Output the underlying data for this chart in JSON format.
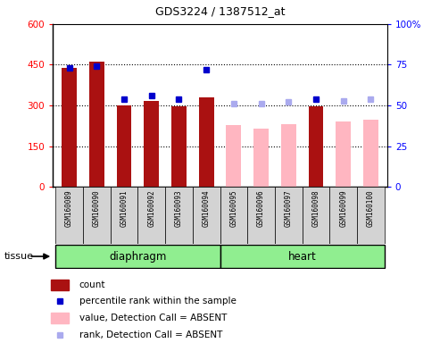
{
  "title": "GDS3224 / 1387512_at",
  "samples": [
    "GSM160089",
    "GSM160090",
    "GSM160091",
    "GSM160092",
    "GSM160093",
    "GSM160094",
    "GSM160095",
    "GSM160096",
    "GSM160097",
    "GSM160098",
    "GSM160099",
    "GSM160100"
  ],
  "count_present": [
    440,
    462,
    300,
    318,
    298,
    330,
    null,
    null,
    null,
    298,
    null,
    null
  ],
  "count_absent": [
    null,
    null,
    null,
    null,
    null,
    null,
    228,
    215,
    230,
    null,
    240,
    248
  ],
  "rank_present": [
    73,
    74,
    54,
    56,
    54,
    72,
    null,
    null,
    null,
    54,
    null,
    null
  ],
  "rank_absent": [
    null,
    null,
    null,
    null,
    null,
    null,
    51,
    51,
    52,
    null,
    53,
    54
  ],
  "n_diaphragm": 6,
  "n_heart": 6,
  "ylim_left": [
    0,
    600
  ],
  "ylim_right": [
    0,
    100
  ],
  "yticks_left": [
    0,
    150,
    300,
    450,
    600
  ],
  "yticks_right": [
    0,
    25,
    50,
    75,
    100
  ],
  "bar_color_present": "#AA1111",
  "bar_color_absent": "#FFB6C1",
  "marker_color_present": "#0000CC",
  "marker_color_absent": "#AAAAEE",
  "tissue_color": "#90EE90",
  "sample_box_color": "#D3D3D3",
  "bar_width": 0.55,
  "legend_items": [
    {
      "color": "#AA1111",
      "type": "bar",
      "label": "count"
    },
    {
      "color": "#0000CC",
      "type": "square",
      "label": "percentile rank within the sample"
    },
    {
      "color": "#FFB6C1",
      "type": "bar",
      "label": "value, Detection Call = ABSENT"
    },
    {
      "color": "#AAAAEE",
      "type": "square",
      "label": "rank, Detection Call = ABSENT"
    }
  ]
}
